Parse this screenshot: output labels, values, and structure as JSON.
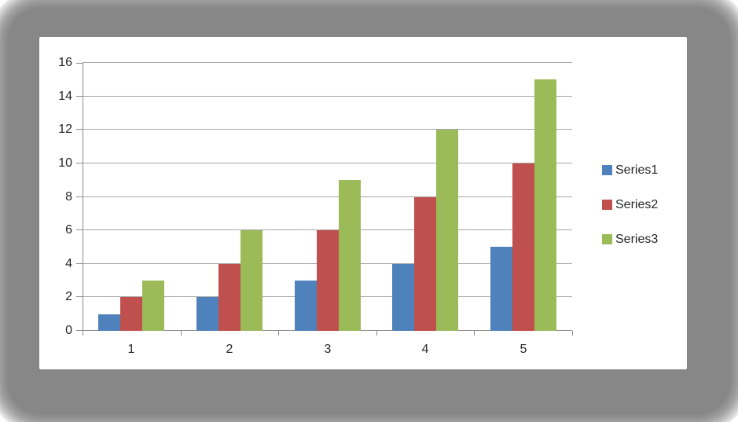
{
  "chart_data": {
    "type": "bar",
    "title": "",
    "categories": [
      "1",
      "2",
      "3",
      "4",
      "5"
    ],
    "series": [
      {
        "name": "Series1",
        "color": "#4F81BD",
        "values": [
          1,
          2,
          3,
          4,
          5
        ]
      },
      {
        "name": "Series2",
        "color": "#C0504D",
        "values": [
          2,
          4,
          6,
          8,
          10
        ]
      },
      {
        "name": "Series3",
        "color": "#9BBB59",
        "values": [
          3,
          6,
          9,
          12,
          15
        ]
      }
    ],
    "xlabel": "",
    "ylabel": "",
    "ylim": [
      0,
      16
    ],
    "ytick_step": 2,
    "ytick_labels": [
      "0",
      "2",
      "4",
      "6",
      "8",
      "10",
      "12",
      "14",
      "16"
    ],
    "grid": true,
    "legend_position": "right",
    "colors": {
      "gridline": "#A6A6A6",
      "axis": "#8A8A8A",
      "text": "#262626",
      "panel_bg": "#FFFFFF",
      "frame_bg": "#878787"
    }
  }
}
